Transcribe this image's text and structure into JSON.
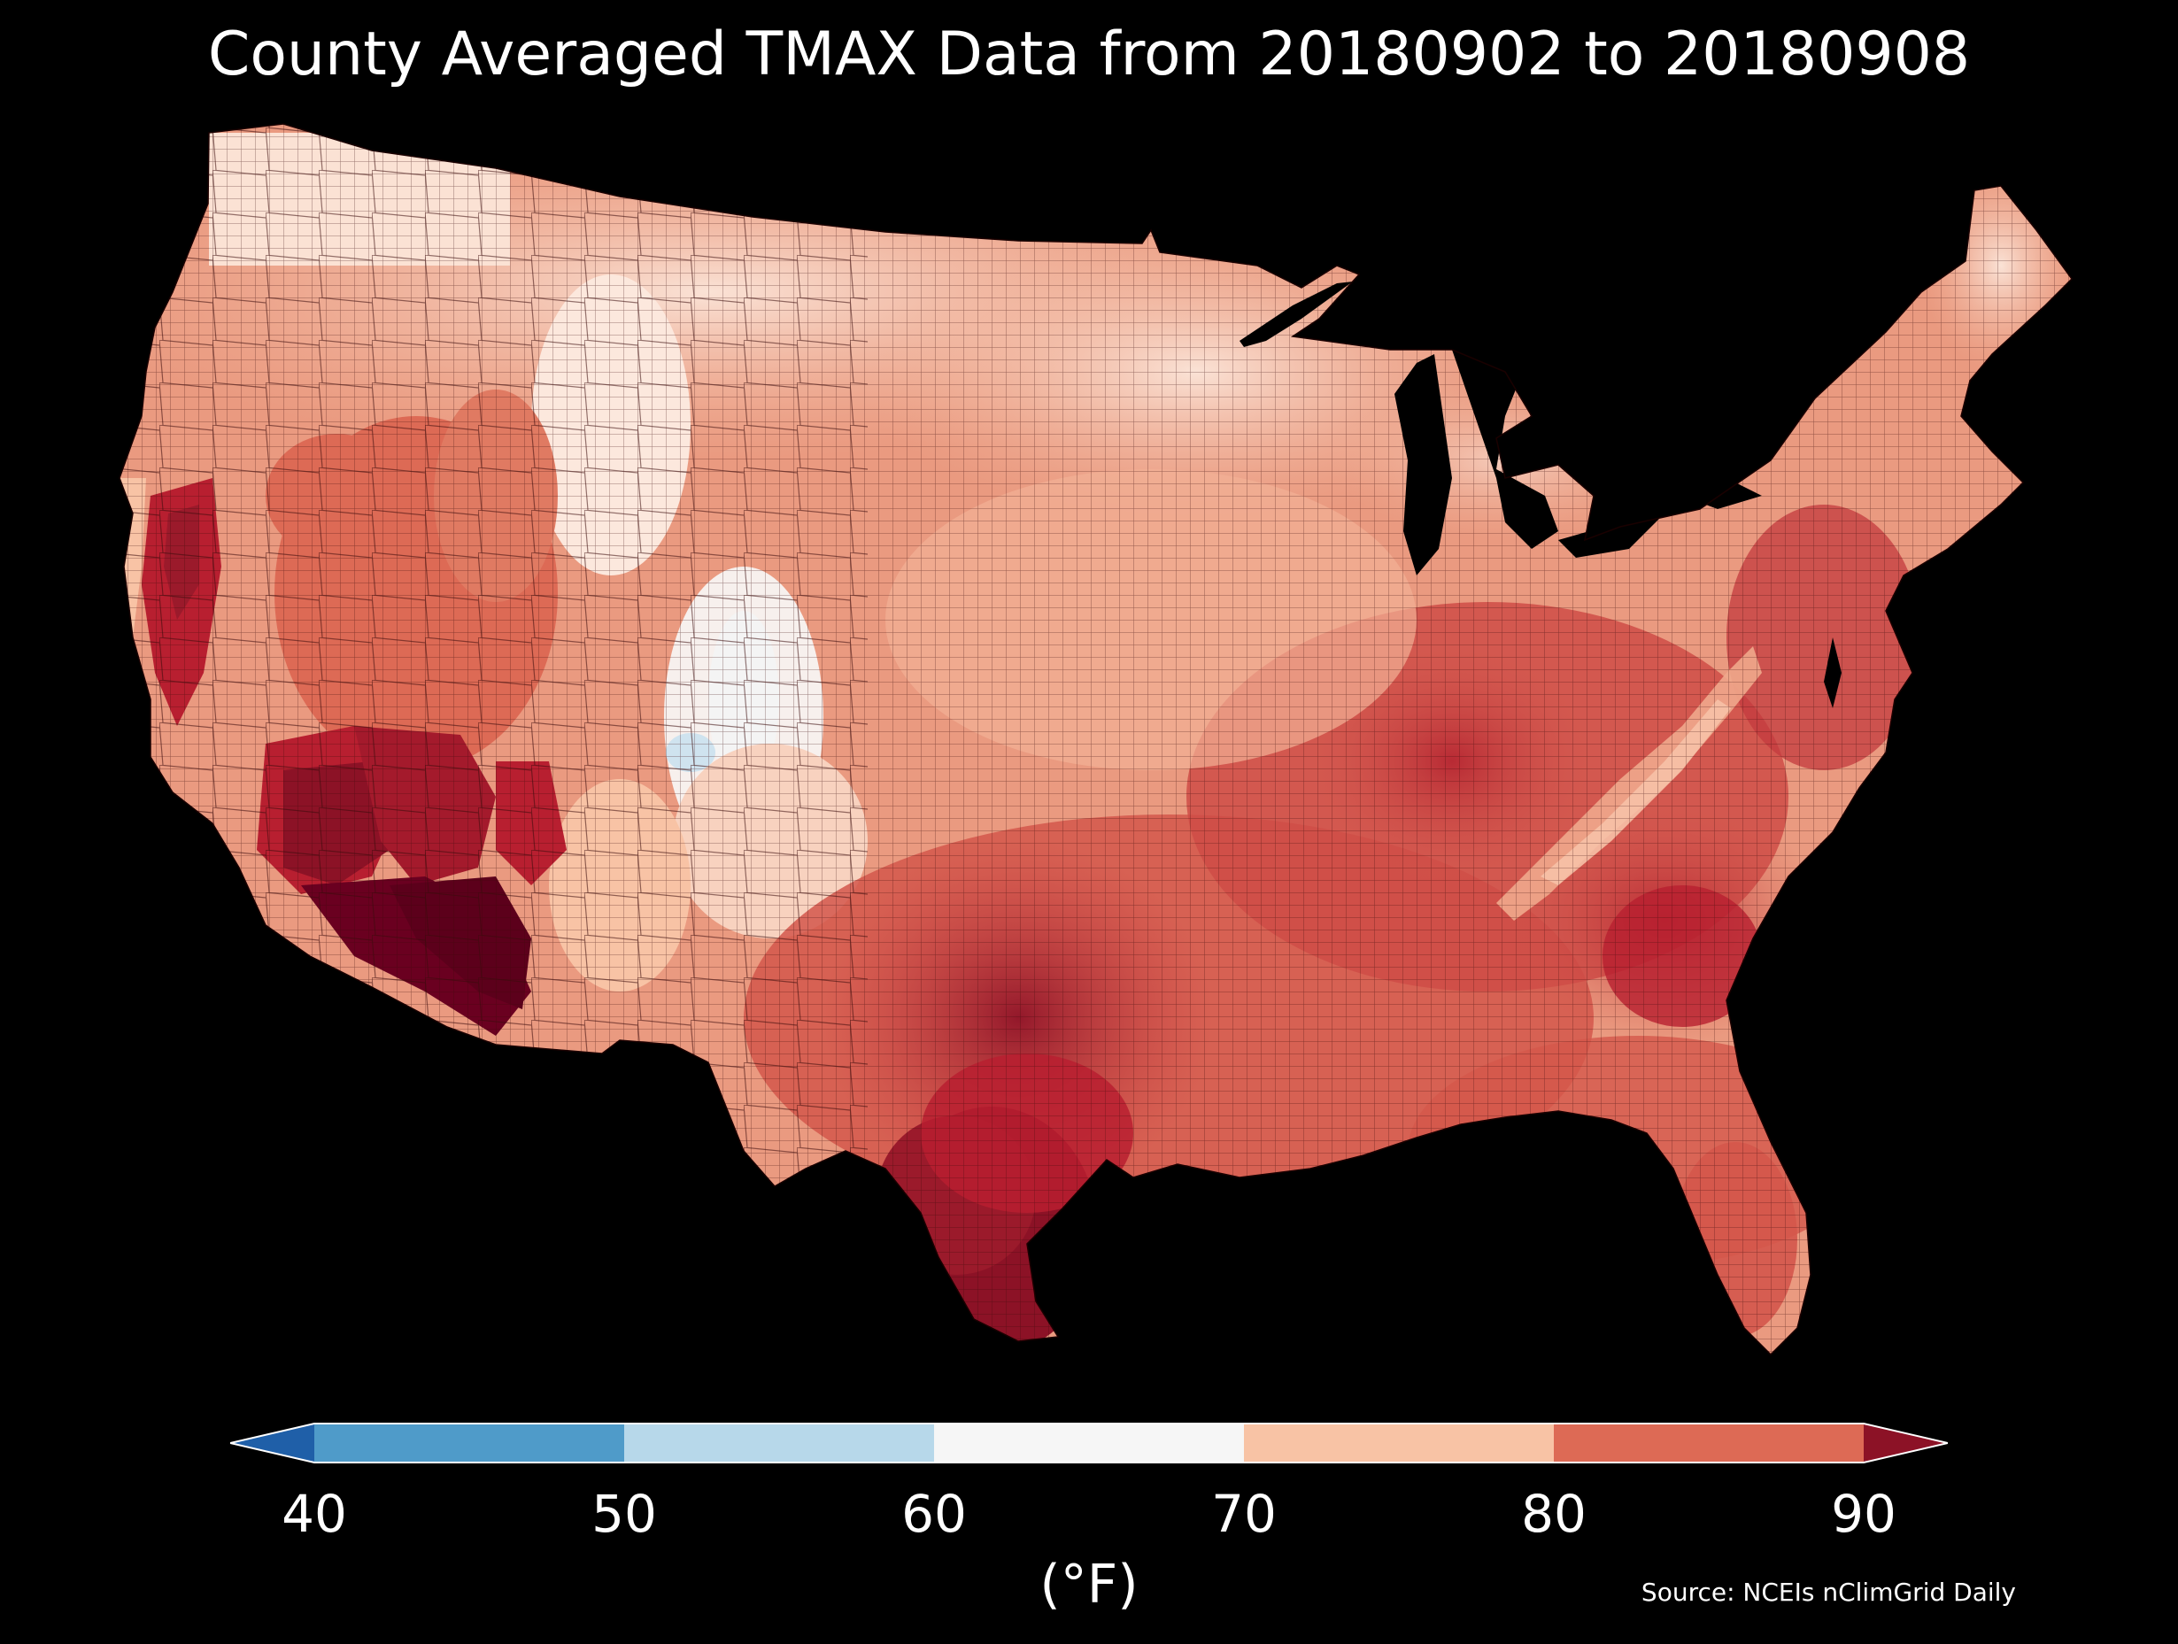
{
  "title": "County Averaged TMAX Data from 20180902 to 20180908",
  "colorbar": {
    "ticks": [
      "40",
      "50",
      "60",
      "70",
      "80",
      "90"
    ],
    "unit": "(°F)",
    "bins": [
      {
        "range": "<40",
        "color": "#1f5fa8"
      },
      {
        "range": "40-50",
        "color": "#4f9bc9"
      },
      {
        "range": "50-60",
        "color": "#b7d8ea"
      },
      {
        "range": "60-70",
        "color": "#f6f6f6"
      },
      {
        "range": "70-80",
        "color": "#f8c3a5"
      },
      {
        "range": "80-90",
        "color": "#dd6a55"
      },
      {
        "range": ">90",
        "color": "#8c1226"
      }
    ]
  },
  "source": "Source: NCEIs nClimGrid Daily",
  "map": {
    "region": "Contiguous United States counties",
    "colors": {
      "background": "#000000",
      "land_base": "#ea9a80",
      "cool": "#fbe3d6",
      "very_cool": "#f4f4f4",
      "blue": "#cfe3ef",
      "warm": "#dd6a55",
      "hot": "#b81f30",
      "very_hot": "#8c1226",
      "extreme": "#6a0020",
      "boundary": "#2a0000"
    }
  }
}
